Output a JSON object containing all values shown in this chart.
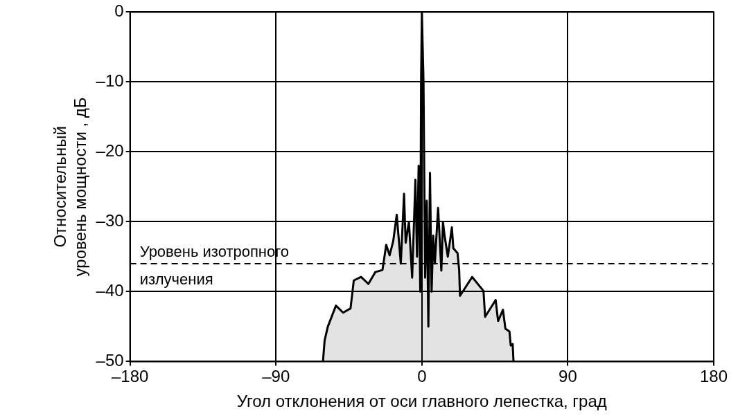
{
  "chart_data": {
    "type": "area",
    "xlabel": "Угол отклонения от оси главного лепестка, град",
    "ylabel": "Относительный уровень мощности , дБ",
    "series": [
      {
        "color": "#000000",
        "x": [
          -61,
          -60,
          -58,
          -53,
          -48.6,
          -44,
          -42,
          -37.5,
          -33,
          -28.7,
          -24.3,
          -22,
          -19.9,
          -17.7,
          -15.5,
          -13,
          -11,
          -10,
          -8,
          -6,
          -4,
          -3,
          -2,
          -1,
          -0.5,
          0,
          0.5,
          1,
          2,
          3,
          4,
          5,
          6,
          7,
          8,
          10,
          12,
          13,
          14,
          16,
          18.5,
          19.4,
          22,
          23,
          23.5,
          31,
          38,
          39,
          45.5,
          47,
          50,
          51.5,
          54,
          54.8,
          56,
          56.5
        ],
        "values": [
          -50,
          -47,
          -45,
          -42,
          -43,
          -42.4,
          -38.4,
          -37.9,
          -38.9,
          -37.2,
          -36.9,
          -33.3,
          -34.8,
          -32.8,
          -29,
          -36,
          -26,
          -33,
          -30,
          -38,
          -24,
          -35,
          -22,
          -40,
          -10,
          0,
          -5,
          -10,
          -38,
          -27,
          -45,
          -23,
          -40,
          -32,
          -36,
          -28,
          -37,
          -30,
          -32,
          -35,
          -30.8,
          -33.8,
          -34.5,
          -36.9,
          -40.6,
          -37.9,
          -39.9,
          -43.6,
          -41.2,
          -44.2,
          -42.6,
          -45.3,
          -45.7,
          -47.7,
          -47.5,
          -50
        ]
      }
    ],
    "xlim": [
      -180,
      180
    ],
    "xticks": [
      {
        "value": -180,
        "label": "–180"
      },
      {
        "value": -90,
        "label": "–90"
      },
      0,
      90,
      180
    ],
    "ylim": [
      -50,
      0
    ],
    "yticks": [
      {
        "value": -50,
        "label": "–50"
      },
      {
        "value": -40,
        "label": "–40"
      },
      {
        "value": -30,
        "label": "–30"
      },
      {
        "value": -20,
        "label": "–20"
      },
      {
        "value": -10,
        "label": "–10"
      },
      0
    ],
    "grid": true,
    "legend": false,
    "ref_lines": [
      {
        "axis": "y",
        "value": -36,
        "label": "Уровень изотропного излучения",
        "line_style": "dashed",
        "color": "#000000"
      }
    ]
  }
}
